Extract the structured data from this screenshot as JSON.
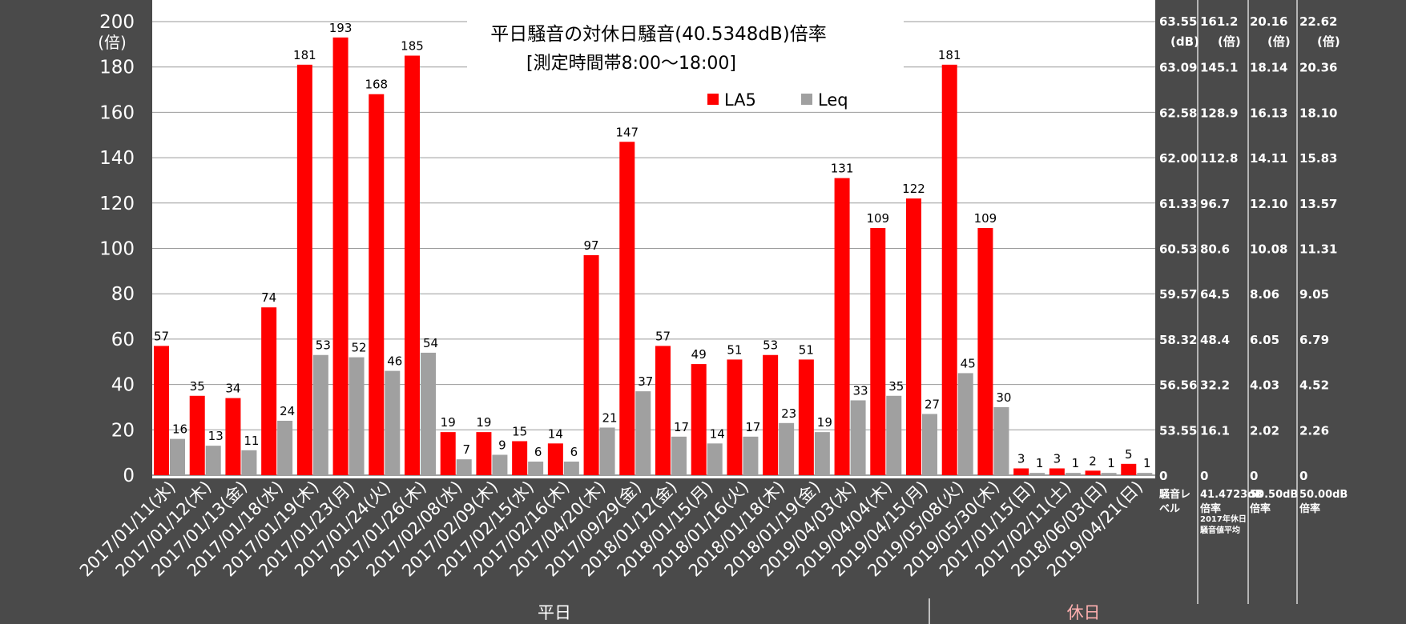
{
  "chart_data": {
    "type": "bar",
    "title": "平日騒音の対休日騒音(40.5348dB)倍率",
    "subtitle": "[測定時間帯8:00～18:00]",
    "ylabel": "(倍)",
    "ylim": [
      0,
      200
    ],
    "yticks": [
      0,
      20,
      40,
      60,
      80,
      100,
      120,
      140,
      160,
      180,
      200
    ],
    "legend_position": "top-center",
    "categories": [
      "2017/01/11(水)",
      "2017/01/12(木)",
      "2017/01/13(金)",
      "2017/01/18(水)",
      "2017/01/19(木)",
      "2017/01/23(月)",
      "2017/01/24(火)",
      "2017/01/26(木)",
      "2017/02/08(水)",
      "2017/02/09(木)",
      "2017/02/15(水)",
      "2017/02/16(木)",
      "2017/04/20(木)",
      "2017/09/29(金)",
      "2018/01/12(金)",
      "2018/01/15(月)",
      "2018/01/16(火)",
      "2018/01/18(木)",
      "2018/01/19(金)",
      "2019/04/03(水)",
      "2019/04/04(木)",
      "2019/04/15(月)",
      "2019/05/08(火)",
      "2019/05/30(木)",
      "2017/01/15(日)",
      "2017/02/11(土)",
      "2018/06/03(日)",
      "2019/04/21(日)"
    ],
    "series": [
      {
        "name": "LA5",
        "color": "#ff0000",
        "values": [
          57,
          35,
          34,
          74,
          181,
          193,
          168,
          185,
          19,
          19,
          15,
          14,
          97,
          147,
          57,
          49,
          51,
          53,
          51,
          131,
          109,
          122,
          181,
          109,
          3,
          3,
          2,
          5
        ]
      },
      {
        "name": "Leq",
        "color": "#a0a0a0",
        "values": [
          16,
          13,
          11,
          24,
          53,
          52,
          46,
          54,
          7,
          9,
          6,
          6,
          21,
          37,
          17,
          14,
          17,
          23,
          19,
          33,
          35,
          27,
          45,
          30,
          1,
          1,
          1,
          1
        ]
      }
    ],
    "groups": [
      {
        "label": "平日",
        "count": 24,
        "color": "#ffffff"
      },
      {
        "label": "休日",
        "count": 4,
        "color": "#ffb0b0"
      }
    ],
    "right_axes": [
      {
        "header": [
          "63.55",
          "(dB)"
        ],
        "ticks": [
          "0",
          "53.55",
          "56.56",
          "58.32",
          "59.57",
          "60.53",
          "61.33",
          "62.00",
          "62.58",
          "63.09"
        ],
        "footer": [
          "騒音レ",
          "ベル"
        ]
      },
      {
        "header": [
          "161.2",
          "(倍)"
        ],
        "ticks": [
          "0",
          "16.1",
          "32.2",
          "48.4",
          "64.5",
          "80.6",
          "96.7",
          "112.8",
          "128.9",
          "145.1"
        ],
        "footer": [
          "41.4723dB",
          "倍率",
          "2017年休日",
          "騒音値平均"
        ]
      },
      {
        "header": [
          "20.16",
          "(倍)"
        ],
        "ticks": [
          "0",
          "2.02",
          "4.03",
          "6.05",
          "8.06",
          "10.08",
          "12.10",
          "14.11",
          "16.13",
          "18.14"
        ],
        "footer": [
          "50.50dB",
          "倍率"
        ]
      },
      {
        "header": [
          "22.62",
          "(倍)"
        ],
        "ticks": [
          "0",
          "2.26",
          "4.52",
          "6.79",
          "9.05",
          "11.31",
          "13.57",
          "15.83",
          "18.10",
          "20.36"
        ],
        "footer": [
          "50.00dB",
          "倍率"
        ]
      }
    ]
  }
}
